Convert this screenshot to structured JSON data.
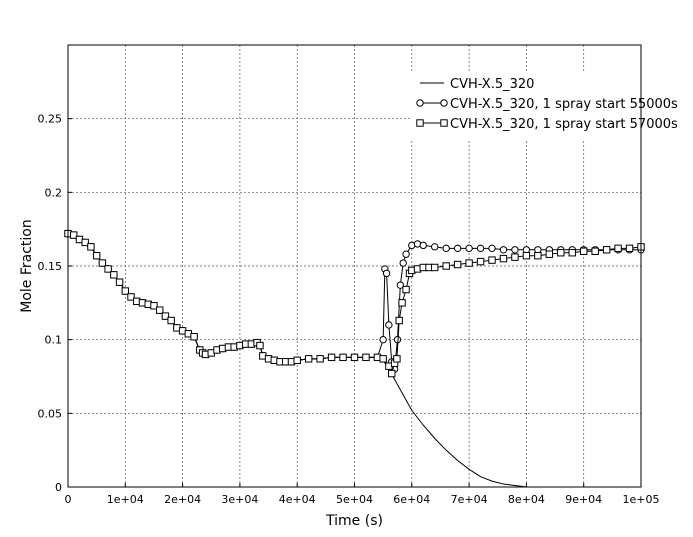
{
  "chart_data": {
    "type": "line",
    "title": "",
    "xlabel": "Time (s)",
    "ylabel": "Mole Fraction",
    "xlim": [
      0,
      100000
    ],
    "ylim": [
      0,
      0.3
    ],
    "grid": true,
    "legend_position": "top-right",
    "x_ticks": [
      {
        "value": 0,
        "label": "0"
      },
      {
        "value": 10000,
        "label": "1e+04"
      },
      {
        "value": 20000,
        "label": "2e+04"
      },
      {
        "value": 30000,
        "label": "3e+04"
      },
      {
        "value": 40000,
        "label": "4e+04"
      },
      {
        "value": 50000,
        "label": "5e+04"
      },
      {
        "value": 60000,
        "label": "6e+04"
      },
      {
        "value": 70000,
        "label": "7e+04"
      },
      {
        "value": 80000,
        "label": "8e+04"
      },
      {
        "value": 90000,
        "label": "9e+04"
      },
      {
        "value": 100000,
        "label": "1e+05"
      }
    ],
    "y_ticks": [
      {
        "value": 0,
        "label": "0"
      },
      {
        "value": 0.05,
        "label": "0.05"
      },
      {
        "value": 0.1,
        "label": "0.1"
      },
      {
        "value": 0.15,
        "label": "0.15"
      },
      {
        "value": 0.2,
        "label": "0.2"
      },
      {
        "value": 0.25,
        "label": "0.25"
      }
    ],
    "series": [
      {
        "name": "CVH-X.5_320",
        "marker": "none",
        "x": [
          0,
          1000,
          2000,
          3000,
          4000,
          5000,
          6000,
          7000,
          8000,
          9000,
          10000,
          11000,
          12000,
          13000,
          14000,
          15000,
          16000,
          17000,
          18000,
          19000,
          20000,
          21000,
          22000,
          23000,
          23500,
          24000,
          25000,
          26000,
          27000,
          28000,
          29000,
          30000,
          31000,
          32000,
          33000,
          33500,
          34000,
          35000,
          36000,
          37000,
          38000,
          39000,
          40000,
          42000,
          44000,
          46000,
          48000,
          50000,
          52000,
          54000,
          55000,
          56000,
          57000,
          58000,
          59000,
          60000,
          62000,
          64000,
          66000,
          68000,
          70000,
          72000,
          74000,
          76000,
          78000,
          80000,
          82000,
          84000,
          86000,
          88000,
          90000,
          92000,
          94000,
          96000,
          98000,
          100000
        ],
        "values": [
          0.172,
          0.171,
          0.168,
          0.166,
          0.163,
          0.157,
          0.152,
          0.148,
          0.144,
          0.139,
          0.133,
          0.129,
          0.126,
          0.125,
          0.124,
          0.123,
          0.12,
          0.116,
          0.113,
          0.108,
          0.106,
          0.104,
          0.102,
          0.093,
          0.091,
          0.09,
          0.091,
          0.093,
          0.094,
          0.095,
          0.095,
          0.096,
          0.097,
          0.097,
          0.098,
          0.096,
          0.089,
          0.087,
          0.086,
          0.085,
          0.085,
          0.085,
          0.086,
          0.087,
          0.087,
          0.088,
          0.088,
          0.088,
          0.088,
          0.088,
          0.086,
          0.08,
          0.073,
          0.066,
          0.059,
          0.052,
          0.042,
          0.033,
          0.025,
          0.018,
          0.012,
          0.007,
          0.004,
          0.002,
          0.001,
          0.0,
          0.0,
          0.0,
          0.0,
          0.0,
          0.0,
          0.0,
          0.0,
          0.0,
          0.0,
          0.0
        ]
      },
      {
        "name": "CVH-X.5_320, 1 spray start 55000s",
        "marker": "circle",
        "x": [
          0,
          1000,
          2000,
          3000,
          4000,
          5000,
          6000,
          7000,
          8000,
          9000,
          10000,
          11000,
          12000,
          13000,
          14000,
          15000,
          16000,
          17000,
          18000,
          19000,
          20000,
          21000,
          22000,
          23000,
          23500,
          24000,
          25000,
          26000,
          27000,
          28000,
          29000,
          30000,
          31000,
          32000,
          33000,
          33500,
          34000,
          35000,
          36000,
          37000,
          38000,
          39000,
          40000,
          42000,
          44000,
          46000,
          48000,
          50000,
          52000,
          54000,
          55000,
          55300,
          55600,
          56000,
          56500,
          57000,
          57500,
          58000,
          58500,
          59000,
          60000,
          61000,
          62000,
          64000,
          66000,
          68000,
          70000,
          72000,
          74000,
          76000,
          78000,
          80000,
          82000,
          84000,
          86000,
          88000,
          90000,
          92000,
          94000,
          96000,
          98000,
          100000
        ],
        "values": [
          0.172,
          0.171,
          0.168,
          0.166,
          0.163,
          0.157,
          0.152,
          0.148,
          0.144,
          0.139,
          0.133,
          0.129,
          0.126,
          0.125,
          0.124,
          0.123,
          0.12,
          0.116,
          0.113,
          0.108,
          0.106,
          0.104,
          0.102,
          0.093,
          0.091,
          0.09,
          0.091,
          0.093,
          0.094,
          0.095,
          0.095,
          0.096,
          0.097,
          0.097,
          0.098,
          0.096,
          0.089,
          0.087,
          0.086,
          0.085,
          0.085,
          0.085,
          0.086,
          0.087,
          0.087,
          0.088,
          0.088,
          0.088,
          0.088,
          0.088,
          0.1,
          0.148,
          0.145,
          0.11,
          0.085,
          0.08,
          0.1,
          0.137,
          0.152,
          0.158,
          0.164,
          0.165,
          0.164,
          0.163,
          0.162,
          0.162,
          0.162,
          0.162,
          0.162,
          0.161,
          0.161,
          0.161,
          0.161,
          0.161,
          0.161,
          0.161,
          0.161,
          0.161,
          0.161,
          0.161,
          0.161,
          0.161
        ]
      },
      {
        "name": "CVH-X.5_320, 1 spray start 57000s",
        "marker": "square",
        "x": [
          0,
          1000,
          2000,
          3000,
          4000,
          5000,
          6000,
          7000,
          8000,
          9000,
          10000,
          11000,
          12000,
          13000,
          14000,
          15000,
          16000,
          17000,
          18000,
          19000,
          20000,
          21000,
          22000,
          23000,
          23500,
          24000,
          25000,
          26000,
          27000,
          28000,
          29000,
          30000,
          31000,
          32000,
          33000,
          33500,
          34000,
          35000,
          36000,
          37000,
          38000,
          39000,
          40000,
          42000,
          44000,
          46000,
          48000,
          50000,
          52000,
          54000,
          55000,
          56000,
          56500,
          57000,
          57400,
          57800,
          58300,
          59000,
          59600,
          60000,
          61000,
          62000,
          63000,
          64000,
          66000,
          68000,
          70000,
          72000,
          74000,
          76000,
          78000,
          80000,
          82000,
          84000,
          86000,
          88000,
          90000,
          92000,
          94000,
          96000,
          98000,
          100000
        ],
        "values": [
          0.172,
          0.171,
          0.168,
          0.166,
          0.163,
          0.157,
          0.152,
          0.148,
          0.144,
          0.139,
          0.133,
          0.129,
          0.126,
          0.125,
          0.124,
          0.123,
          0.12,
          0.116,
          0.113,
          0.108,
          0.106,
          0.104,
          0.102,
          0.093,
          0.091,
          0.09,
          0.091,
          0.093,
          0.094,
          0.095,
          0.095,
          0.096,
          0.097,
          0.097,
          0.098,
          0.096,
          0.089,
          0.087,
          0.086,
          0.085,
          0.085,
          0.085,
          0.086,
          0.087,
          0.087,
          0.088,
          0.088,
          0.088,
          0.088,
          0.088,
          0.087,
          0.082,
          0.077,
          0.084,
          0.087,
          0.113,
          0.125,
          0.134,
          0.145,
          0.147,
          0.148,
          0.149,
          0.149,
          0.149,
          0.15,
          0.151,
          0.152,
          0.153,
          0.154,
          0.155,
          0.156,
          0.157,
          0.157,
          0.158,
          0.159,
          0.159,
          0.16,
          0.16,
          0.161,
          0.162,
          0.162,
          0.163
        ]
      }
    ]
  }
}
